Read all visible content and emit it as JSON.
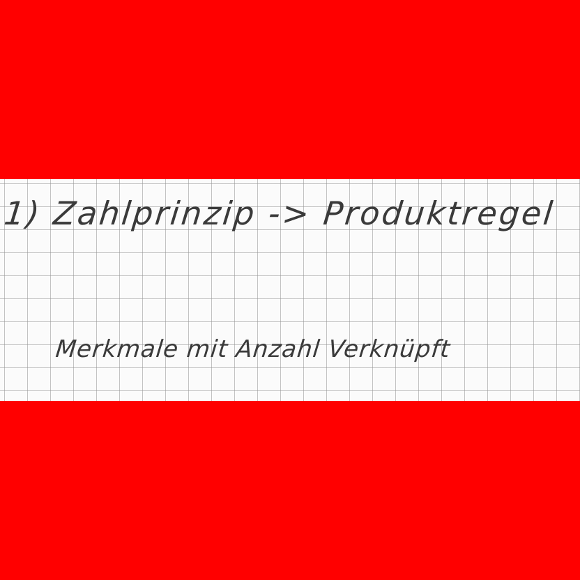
{
  "note": {
    "line_1": "1) Zahlprinzip -> Produktregel",
    "line_2": "Merkmale mit Anzahl Verknüpft"
  },
  "colors": {
    "background": "#ff0000",
    "paper": "#fbfbfb",
    "grid": "#969696",
    "ink": "#3a3a3a"
  }
}
